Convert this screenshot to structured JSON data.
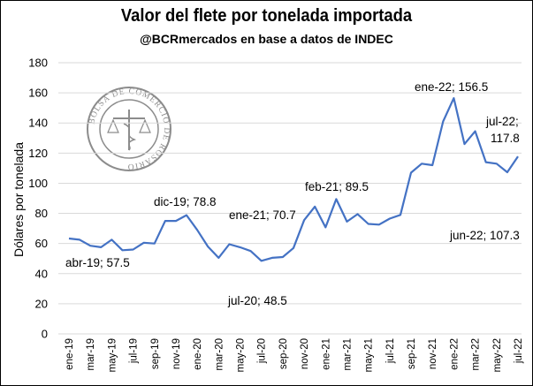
{
  "chart_data": {
    "type": "line",
    "title": "Valor del flete por tonelada importada",
    "subtitle": "@BCRmercados en base a datos de INDEC",
    "ylabel": "Dólares por tonelada",
    "xlabel": "",
    "ylim": [
      0,
      180
    ],
    "yticks": [
      0,
      20,
      40,
      60,
      80,
      100,
      120,
      140,
      160,
      180
    ],
    "grid": true,
    "line_color": "#4472C4",
    "watermark_text": "BOLSA DE COMERCIO DE ROSARIO",
    "x": [
      "ene-19",
      "feb-19",
      "mar-19",
      "abr-19",
      "may-19",
      "jun-19",
      "jul-19",
      "ago-19",
      "sep-19",
      "oct-19",
      "nov-19",
      "dic-19",
      "ene-20",
      "feb-20",
      "mar-20",
      "abr-20",
      "may-20",
      "jun-20",
      "jul-20",
      "ago-20",
      "sep-20",
      "oct-20",
      "nov-20",
      "dic-20",
      "ene-21",
      "feb-21",
      "mar-21",
      "abr-21",
      "may-21",
      "jun-21",
      "jul-21",
      "ago-21",
      "sep-21",
      "oct-21",
      "nov-21",
      "dic-21",
      "ene-22",
      "feb-22",
      "mar-22",
      "abr-22",
      "may-22",
      "jun-22",
      "jul-22"
    ],
    "x_tick_labels": [
      "ene-19",
      "mar-19",
      "may-19",
      "jul-19",
      "sep-19",
      "nov-19",
      "ene-20",
      "mar-20",
      "may-20",
      "jul-20",
      "sep-20",
      "nov-20",
      "ene-21",
      "mar-21",
      "may-21",
      "jul-21",
      "sep-21",
      "nov-21",
      "ene-22",
      "mar-22",
      "may-22",
      "jul-22"
    ],
    "series": [
      {
        "values": [
          63.3,
          62.5,
          58.5,
          57.5,
          62.5,
          55.5,
          56.0,
          60.5,
          60.0,
          75.0,
          75.0,
          78.8,
          69.0,
          58.0,
          50.5,
          59.5,
          57.5,
          55.0,
          48.5,
          50.5,
          51.0,
          57.0,
          75.5,
          84.5,
          70.7,
          89.5,
          74.5,
          79.5,
          73.0,
          72.5,
          76.5,
          79.0,
          107.0,
          113.0,
          112.0,
          141.0,
          156.5,
          126.0,
          134.5,
          114.0,
          113.0,
          107.3,
          117.8
        ]
      }
    ],
    "annotations": [
      {
        "label": "abr-19; 57.5"
      },
      {
        "label": "dic-19; 78.8"
      },
      {
        "label": "jul-20; 48.5"
      },
      {
        "label": "ene-21; 70.7"
      },
      {
        "label": "feb-21; 89.5"
      },
      {
        "label": "ene-22; 156.5"
      },
      {
        "label": "jul-22;"
      },
      {
        "label": "117.8"
      },
      {
        "label": "jun-22; 107.3"
      }
    ]
  }
}
